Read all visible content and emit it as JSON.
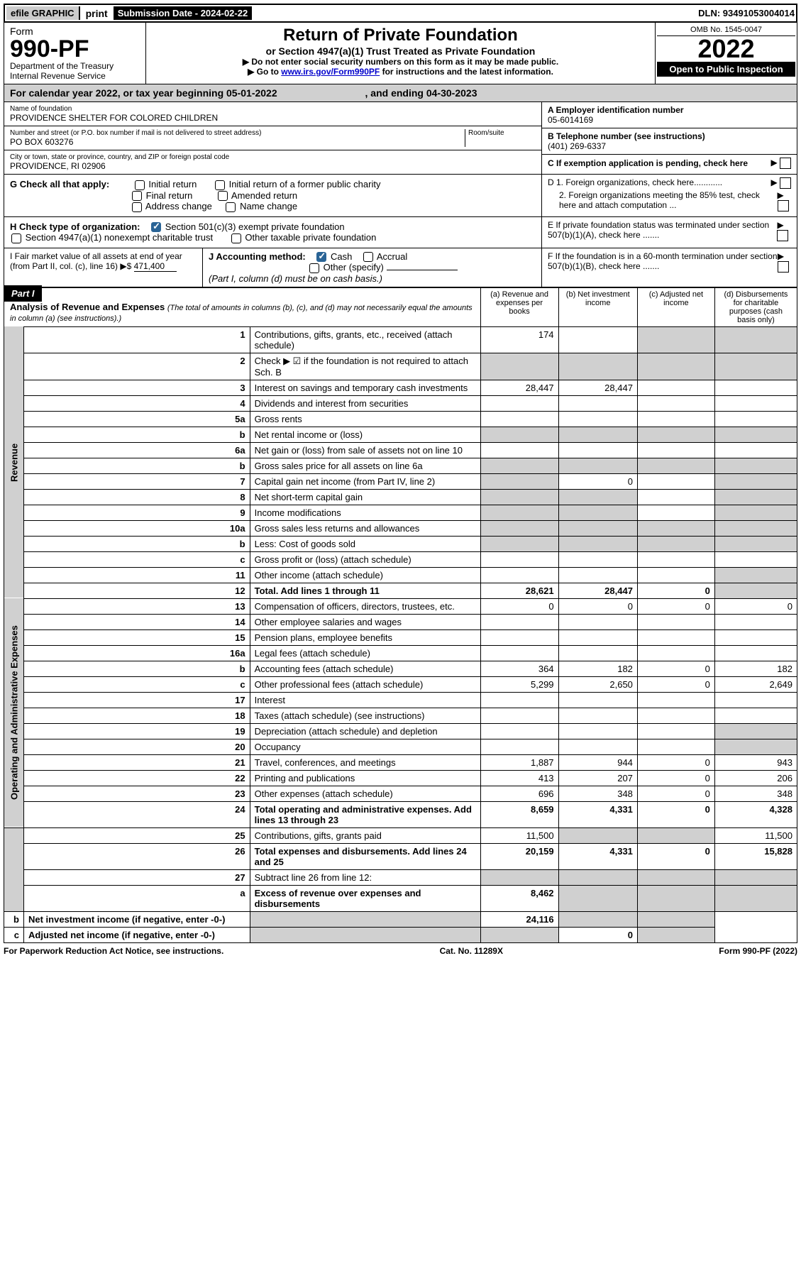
{
  "top": {
    "efile": "efile GRAPHIC",
    "print": "print",
    "submission_label": "Submission Date - 2024-02-22",
    "dln": "DLN: 93491053004014"
  },
  "header": {
    "form_label": "Form",
    "form_no": "990-PF",
    "dept": "Department of the Treasury",
    "irs": "Internal Revenue Service",
    "title": "Return of Private Foundation",
    "subtitle": "or Section 4947(a)(1) Trust Treated as Private Foundation",
    "instr1": "▶ Do not enter social security numbers on this form as it may be made public.",
    "instr2_prefix": "▶ Go to ",
    "instr2_link": "www.irs.gov/Form990PF",
    "instr2_suffix": " for instructions and the latest information.",
    "omb": "OMB No. 1545-0047",
    "year": "2022",
    "open": "Open to Public Inspection"
  },
  "calyear": {
    "text": "For calendar year 2022, or tax year beginning 05-01-2022",
    "ending": ", and ending 04-30-2023"
  },
  "info": {
    "name_lbl": "Name of foundation",
    "name": "PROVIDENCE SHELTER FOR COLORED CHILDREN",
    "addr_lbl": "Number and street (or P.O. box number if mail is not delivered to street address)",
    "room_lbl": "Room/suite",
    "addr": "PO BOX 603276",
    "city_lbl": "City or town, state or province, country, and ZIP or foreign postal code",
    "city": "PROVIDENCE, RI  02906",
    "a_lbl": "A Employer identification number",
    "a_val": "05-6014169",
    "b_lbl": "B Telephone number (see instructions)",
    "b_val": "(401) 269-6337",
    "c_lbl": "C If exemption application is pending, check here"
  },
  "g": {
    "label": "G Check all that apply:",
    "initial": "Initial return",
    "initial_former": "Initial return of a former public charity",
    "final": "Final return",
    "amended": "Amended return",
    "address": "Address change",
    "name": "Name change"
  },
  "h": {
    "label": "H Check type of organization:",
    "s501": "Section 501(c)(3) exempt private foundation",
    "s4947": "Section 4947(a)(1) nonexempt charitable trust",
    "other_tax": "Other taxable private foundation"
  },
  "d": {
    "d1": "D 1. Foreign organizations, check here............",
    "d2": "2. Foreign organizations meeting the 85% test, check here and attach computation ..."
  },
  "e": "E  If private foundation status was terminated under section 507(b)(1)(A), check here .......",
  "f": "F  If the foundation is in a 60-month termination under section 507(b)(1)(B), check here .......",
  "i": {
    "label": "I Fair market value of all assets at end of year (from Part II, col. (c), line 16)",
    "arrow": "▶$",
    "value": "471,400"
  },
  "j": {
    "label": "J Accounting method:",
    "cash": "Cash",
    "accrual": "Accrual",
    "other": "Other (specify)",
    "note": "(Part I, column (d) must be on cash basis.)"
  },
  "part1": {
    "label": "Part I",
    "title": "Analysis of Revenue and Expenses",
    "note": "(The total of amounts in columns (b), (c), and (d) may not necessarily equal the amounts in column (a) (see instructions).)",
    "col_a": "(a) Revenue and expenses per books",
    "col_b": "(b) Net investment income",
    "col_c": "(c) Adjusted net income",
    "col_d": "(d) Disbursements for charitable purposes (cash basis only)"
  },
  "sections": {
    "revenue": "Revenue",
    "opex": "Operating and Administrative Expenses"
  },
  "rows": [
    {
      "n": "1",
      "d": "Contributions, gifts, grants, etc., received (attach schedule)",
      "a": "174",
      "b": "",
      "c": "",
      "dcol": ""
    },
    {
      "n": "2",
      "d": "Check ▶ ☑ if the foundation is not required to attach Sch. B",
      "a": "",
      "b": "",
      "c": "",
      "dcol": ""
    },
    {
      "n": "3",
      "d": "Interest on savings and temporary cash investments",
      "a": "28,447",
      "b": "28,447",
      "c": "",
      "dcol": ""
    },
    {
      "n": "4",
      "d": "Dividends and interest from securities",
      "a": "",
      "b": "",
      "c": "",
      "dcol": ""
    },
    {
      "n": "5a",
      "d": "Gross rents",
      "a": "",
      "b": "",
      "c": "",
      "dcol": ""
    },
    {
      "n": "b",
      "d": "Net rental income or (loss)",
      "a": "",
      "b": "",
      "c": "",
      "dcol": ""
    },
    {
      "n": "6a",
      "d": "Net gain or (loss) from sale of assets not on line 10",
      "a": "",
      "b": "",
      "c": "",
      "dcol": ""
    },
    {
      "n": "b",
      "d": "Gross sales price for all assets on line 6a",
      "a": "",
      "b": "",
      "c": "",
      "dcol": ""
    },
    {
      "n": "7",
      "d": "Capital gain net income (from Part IV, line 2)",
      "a": "",
      "b": "0",
      "c": "",
      "dcol": ""
    },
    {
      "n": "8",
      "d": "Net short-term capital gain",
      "a": "",
      "b": "",
      "c": "",
      "dcol": ""
    },
    {
      "n": "9",
      "d": "Income modifications",
      "a": "",
      "b": "",
      "c": "",
      "dcol": ""
    },
    {
      "n": "10a",
      "d": "Gross sales less returns and allowances",
      "a": "",
      "b": "",
      "c": "",
      "dcol": ""
    },
    {
      "n": "b",
      "d": "Less: Cost of goods sold",
      "a": "",
      "b": "",
      "c": "",
      "dcol": ""
    },
    {
      "n": "c",
      "d": "Gross profit or (loss) (attach schedule)",
      "a": "",
      "b": "",
      "c": "",
      "dcol": ""
    },
    {
      "n": "11",
      "d": "Other income (attach schedule)",
      "a": "",
      "b": "",
      "c": "",
      "dcol": ""
    },
    {
      "n": "12",
      "d": "Total. Add lines 1 through 11",
      "a": "28,621",
      "b": "28,447",
      "c": "0",
      "dcol": "",
      "bold": true
    },
    {
      "n": "13",
      "d": "Compensation of officers, directors, trustees, etc.",
      "a": "0",
      "b": "0",
      "c": "0",
      "dcol": "0"
    },
    {
      "n": "14",
      "d": "Other employee salaries and wages",
      "a": "",
      "b": "",
      "c": "",
      "dcol": ""
    },
    {
      "n": "15",
      "d": "Pension plans, employee benefits",
      "a": "",
      "b": "",
      "c": "",
      "dcol": ""
    },
    {
      "n": "16a",
      "d": "Legal fees (attach schedule)",
      "a": "",
      "b": "",
      "c": "",
      "dcol": ""
    },
    {
      "n": "b",
      "d": "Accounting fees (attach schedule)",
      "a": "364",
      "b": "182",
      "c": "0",
      "dcol": "182"
    },
    {
      "n": "c",
      "d": "Other professional fees (attach schedule)",
      "a": "5,299",
      "b": "2,650",
      "c": "0",
      "dcol": "2,649"
    },
    {
      "n": "17",
      "d": "Interest",
      "a": "",
      "b": "",
      "c": "",
      "dcol": ""
    },
    {
      "n": "18",
      "d": "Taxes (attach schedule) (see instructions)",
      "a": "",
      "b": "",
      "c": "",
      "dcol": ""
    },
    {
      "n": "19",
      "d": "Depreciation (attach schedule) and depletion",
      "a": "",
      "b": "",
      "c": "",
      "dcol": ""
    },
    {
      "n": "20",
      "d": "Occupancy",
      "a": "",
      "b": "",
      "c": "",
      "dcol": ""
    },
    {
      "n": "21",
      "d": "Travel, conferences, and meetings",
      "a": "1,887",
      "b": "944",
      "c": "0",
      "dcol": "943"
    },
    {
      "n": "22",
      "d": "Printing and publications",
      "a": "413",
      "b": "207",
      "c": "0",
      "dcol": "206"
    },
    {
      "n": "23",
      "d": "Other expenses (attach schedule)",
      "a": "696",
      "b": "348",
      "c": "0",
      "dcol": "348"
    },
    {
      "n": "24",
      "d": "Total operating and administrative expenses. Add lines 13 through 23",
      "a": "8,659",
      "b": "4,331",
      "c": "0",
      "dcol": "4,328",
      "bold": true
    },
    {
      "n": "25",
      "d": "Contributions, gifts, grants paid",
      "a": "11,500",
      "b": "",
      "c": "",
      "dcol": "11,500"
    },
    {
      "n": "26",
      "d": "Total expenses and disbursements. Add lines 24 and 25",
      "a": "20,159",
      "b": "4,331",
      "c": "0",
      "dcol": "15,828",
      "bold": true
    },
    {
      "n": "27",
      "d": "Subtract line 26 from line 12:",
      "a": "",
      "b": "",
      "c": "",
      "dcol": ""
    },
    {
      "n": "a",
      "d": "Excess of revenue over expenses and disbursements",
      "a": "8,462",
      "b": "",
      "c": "",
      "dcol": "",
      "bold": true
    },
    {
      "n": "b",
      "d": "Net investment income (if negative, enter -0-)",
      "a": "",
      "b": "24,116",
      "c": "",
      "dcol": "",
      "bold": true
    },
    {
      "n": "c",
      "d": "Adjusted net income (if negative, enter -0-)",
      "a": "",
      "b": "",
      "c": "0",
      "dcol": "",
      "bold": true
    }
  ],
  "footer": {
    "left": "For Paperwork Reduction Act Notice, see instructions.",
    "mid": "Cat. No. 11289X",
    "right": "Form 990-PF (2022)"
  },
  "shaded_cells": {
    "1": [
      "c",
      "d"
    ],
    "2": [
      "a",
      "b",
      "c",
      "d"
    ],
    "5b": [
      "a",
      "b",
      "c",
      "d"
    ],
    "6b": [
      "a",
      "b",
      "c",
      "d"
    ],
    "7": [
      "a",
      "d"
    ],
    "8": [
      "a",
      "b",
      "d"
    ],
    "9": [
      "a",
      "b",
      "d"
    ],
    "10a": [
      "a",
      "b",
      "c",
      "d"
    ],
    "10b": [
      "a",
      "b",
      "c",
      "d"
    ],
    "11": [
      "d"
    ],
    "12": [
      "d"
    ],
    "19": [
      "d"
    ],
    "20": [
      "d"
    ],
    "25": [
      "b",
      "c"
    ],
    "27": [
      "a",
      "b",
      "c",
      "d"
    ],
    "27a": [
      "b",
      "c",
      "d"
    ],
    "27b": [
      "a",
      "c",
      "d"
    ],
    "27c": [
      "a",
      "b",
      "d"
    ]
  }
}
